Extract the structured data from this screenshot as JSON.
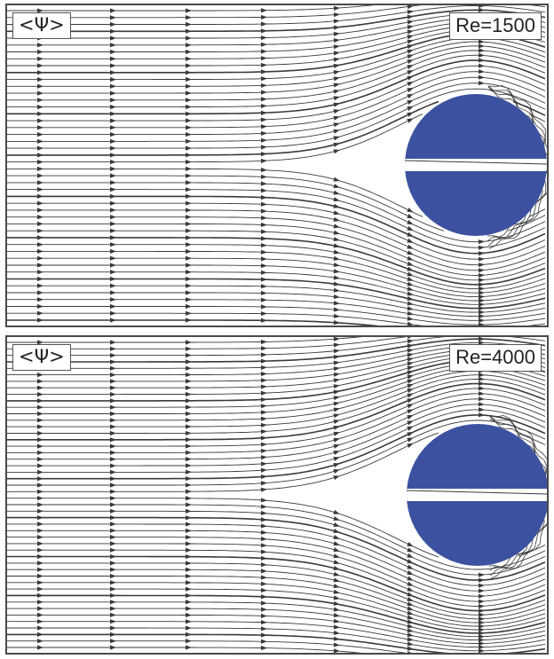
{
  "panels": [
    {
      "label": "<Ψ>",
      "re_label": "Re=1500"
    },
    {
      "label": "<Ψ>",
      "re_label": "Re=4000"
    }
  ],
  "colors": {
    "cylinder": "#3c52a0",
    "streamline": "#3a3a3a",
    "border": "#4a4a4a"
  }
}
